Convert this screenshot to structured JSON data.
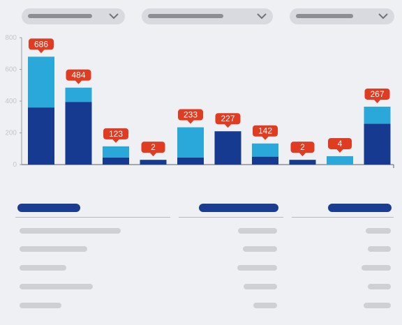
{
  "filters": [
    {
      "icon": "chevron-down-icon"
    },
    {
      "icon": "chevron-down-icon"
    },
    {
      "icon": "chevron-down-icon"
    }
  ],
  "colors": {
    "background": "#eff0f4",
    "filter_bg": "#d9dadf",
    "filter_bar": "#8b8e93",
    "series_dark": "#163a8f",
    "series_light": "#2aa8da",
    "callout": "#e03c22",
    "header_pill": "#1a3d91",
    "placeholder": "#cfd0d4"
  },
  "chart_data": {
    "type": "bar",
    "stacked": true,
    "ylim": [
      0,
      800
    ],
    "y_ticks": [
      "0",
      "200",
      "400",
      "600",
      "800"
    ],
    "categories": [
      "",
      "",
      "",
      "",
      "",
      "",
      "",
      "",
      "",
      ""
    ],
    "series": [
      {
        "values": [
          360,
          395,
          45,
          30,
          45,
          210,
          50,
          30,
          0,
          258
        ]
      },
      {
        "values": [
          320,
          90,
          70,
          0,
          190,
          0,
          83,
          0,
          53,
          107
        ]
      }
    ],
    "callouts": [
      "686",
      "484",
      "123",
      "2",
      "233",
      "227",
      "142",
      "2",
      "4",
      "267"
    ],
    "grid": false,
    "legend": "none"
  }
}
